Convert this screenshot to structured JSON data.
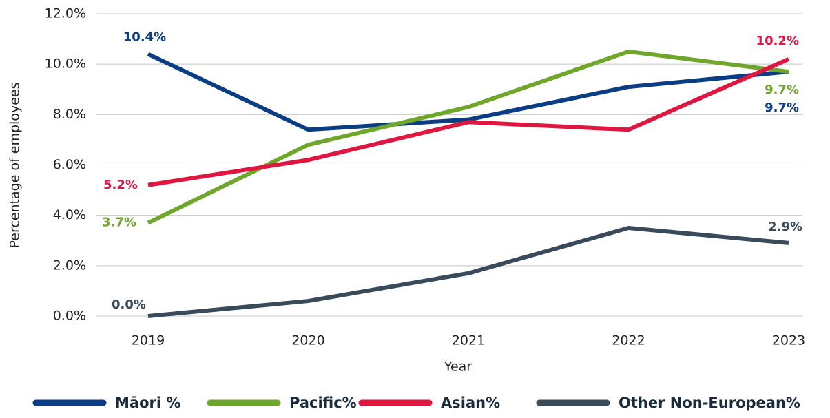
{
  "chart_data": {
    "type": "line",
    "x_label": "Year",
    "y_label": "Percentage of employees",
    "categories": [
      "2019",
      "2020",
      "2021",
      "2022",
      "2023"
    ],
    "ylim": [
      0,
      12
    ],
    "yticks": [
      {
        "value": 0,
        "label": "0.0%"
      },
      {
        "value": 2,
        "label": "2.0%"
      },
      {
        "value": 4,
        "label": "4.0%"
      },
      {
        "value": 6,
        "label": "6.0%"
      },
      {
        "value": 8,
        "label": "8.0%"
      },
      {
        "value": 10,
        "label": "10.0%"
      },
      {
        "value": 12,
        "label": "12.0%"
      }
    ],
    "grid": true,
    "series": [
      {
        "name": "Māori %",
        "color": "#0b3d85",
        "values": [
          10.4,
          7.4,
          7.8,
          9.1,
          9.7
        ],
        "value_labels": [
          "10.4%",
          null,
          null,
          null,
          "9.7%"
        ]
      },
      {
        "name": "Pacific%",
        "color": "#6ea72b",
        "values": [
          3.7,
          6.8,
          8.3,
          10.5,
          9.7
        ],
        "value_labels": [
          "3.7%",
          null,
          null,
          null,
          "9.7%"
        ]
      },
      {
        "name": "Asian%",
        "color": "#de1640",
        "values": [
          5.2,
          6.2,
          7.7,
          7.4,
          10.2
        ],
        "value_labels": [
          "5.2%",
          null,
          null,
          null,
          "10.2%"
        ]
      },
      {
        "name": "Other Non-European%",
        "color": "#394a5a",
        "values": [
          0,
          0.6,
          1.7,
          3.5,
          2.9
        ],
        "value_labels": [
          "0.0%",
          null,
          null,
          null,
          "2.9%"
        ]
      }
    ]
  }
}
